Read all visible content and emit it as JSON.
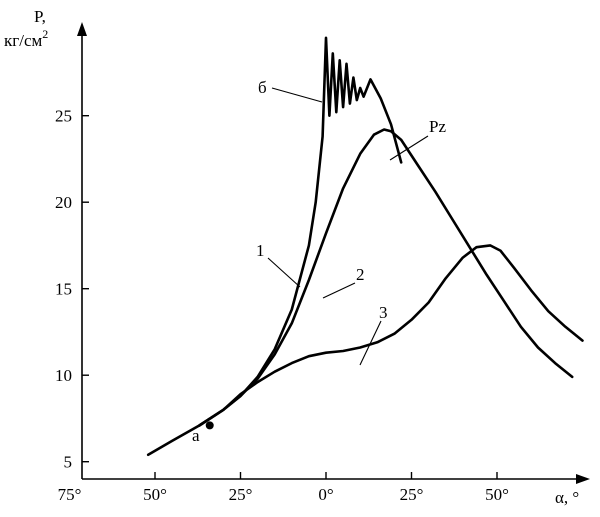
{
  "chart_data": {
    "type": "line",
    "y_axis_title": "P,",
    "y_axis_unit_base": "кг/см",
    "y_axis_unit_sup": "2",
    "x_axis_title": "α, °",
    "y_ticks": [
      5,
      10,
      15,
      20,
      25
    ],
    "y_tick_labels": [
      "5",
      "10",
      "15",
      "20",
      "25"
    ],
    "x_ticks": [
      -75,
      -50,
      -25,
      0,
      25,
      50
    ],
    "x_tick_labels": [
      "75°",
      "50°",
      "25°",
      "0°",
      "25°",
      "50°"
    ],
    "xlim": [
      -75,
      75
    ],
    "ylim": [
      4,
      30
    ],
    "series": [
      {
        "id": "curve-1",
        "x": [
          -52,
          -45,
          -37,
          -30,
          -25,
          -20,
          -15,
          -10,
          -5,
          -3,
          -1,
          0,
          1,
          2,
          3,
          4,
          5,
          6,
          7,
          8,
          9,
          10,
          11,
          13,
          16,
          19,
          22
        ],
        "y": [
          5.4,
          6.2,
          7.1,
          8.0,
          8.8,
          9.9,
          11.5,
          13.8,
          17.5,
          20.0,
          23.8,
          29.5,
          25.0,
          28.6,
          25.2,
          28.2,
          25.5,
          28.0,
          25.7,
          27.2,
          25.9,
          26.6,
          26.1,
          27.1,
          26.0,
          24.5,
          22.3
        ]
      },
      {
        "id": "curve-2",
        "x": [
          -37,
          -30,
          -25,
          -20,
          -15,
          -10,
          -5,
          0,
          5,
          10,
          14,
          17,
          19,
          22,
          27,
          32,
          37,
          42,
          47,
          52,
          57,
          62,
          67,
          72
        ],
        "y": [
          7.1,
          8.0,
          8.8,
          9.8,
          11.2,
          13.0,
          15.5,
          18.2,
          20.8,
          22.8,
          23.9,
          24.2,
          24.1,
          23.6,
          22.1,
          20.6,
          19.0,
          17.4,
          15.8,
          14.3,
          12.8,
          11.6,
          10.7,
          9.9
        ]
      },
      {
        "id": "curve-3",
        "x": [
          -37,
          -30,
          -25,
          -20,
          -15,
          -10,
          -5,
          0,
          5,
          10,
          15,
          20,
          25,
          30,
          35,
          40,
          44,
          48,
          51,
          55,
          60,
          65,
          70,
          75
        ],
        "y": [
          7.1,
          8.0,
          8.9,
          9.6,
          10.2,
          10.7,
          11.1,
          11.3,
          11.4,
          11.6,
          11.9,
          12.4,
          13.2,
          14.2,
          15.6,
          16.8,
          17.4,
          17.5,
          17.2,
          16.2,
          14.9,
          13.7,
          12.8,
          12.0
        ]
      }
    ],
    "point_a": {
      "x": -34,
      "y": 7.1
    },
    "annotations": {
      "label_1": "1",
      "label_2": "2",
      "label_3": "3",
      "label_b": "б",
      "label_pz": "Pz",
      "label_a": "а"
    }
  }
}
